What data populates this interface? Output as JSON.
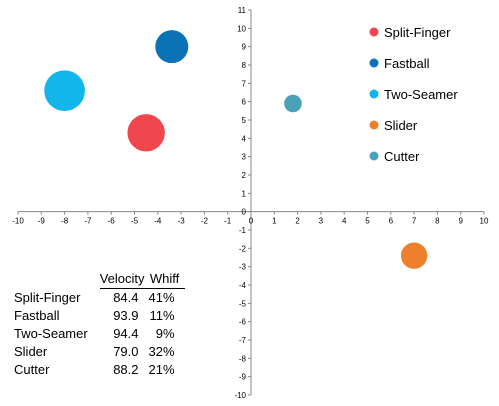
{
  "chart_data": {
    "type": "scatter",
    "xlim": [
      -10,
      10
    ],
    "ylim": [
      -10,
      11
    ],
    "x_ticks": [
      -10,
      -9,
      -8,
      -7,
      -6,
      -5,
      -4,
      -3,
      -2,
      -1,
      0,
      1,
      2,
      3,
      4,
      5,
      6,
      7,
      8,
      9,
      10
    ],
    "y_ticks": [
      -10,
      -9,
      -8,
      -7,
      -6,
      -5,
      -4,
      -3,
      -2,
      -1,
      0,
      1,
      2,
      3,
      4,
      5,
      6,
      7,
      8,
      9,
      10,
      11
    ],
    "grid": false,
    "legend_position": "top-right",
    "series": [
      {
        "name": "Split-Finger",
        "x": -4.5,
        "y": 4.3,
        "size": 3.4,
        "color": "#f0474e"
      },
      {
        "name": "Fastball",
        "x": -3.4,
        "y": 9.0,
        "size": 3.0,
        "color": "#0b72b5"
      },
      {
        "name": "Two-Seamer",
        "x": -8.0,
        "y": 6.6,
        "size": 3.7,
        "color": "#12b6ea"
      },
      {
        "name": "Slider",
        "x": 7.0,
        "y": -2.4,
        "size": 2.4,
        "color": "#ee7f2d"
      },
      {
        "name": "Cutter",
        "x": 1.8,
        "y": 5.9,
        "size": 1.6,
        "color": "#4ba2b7"
      }
    ]
  },
  "stats_table": {
    "headers": [
      "Velocity",
      "Whiff"
    ],
    "rows": [
      {
        "pitch": "Split-Finger",
        "velocity": "84.4",
        "whiff": "41%"
      },
      {
        "pitch": "Fastball",
        "velocity": "93.9",
        "whiff": "11%"
      },
      {
        "pitch": "Two-Seamer",
        "velocity": "94.4",
        "whiff": "9%"
      },
      {
        "pitch": "Slider",
        "velocity": "79.0",
        "whiff": "32%"
      },
      {
        "pitch": "Cutter",
        "velocity": "88.2",
        "whiff": "21%"
      }
    ]
  }
}
